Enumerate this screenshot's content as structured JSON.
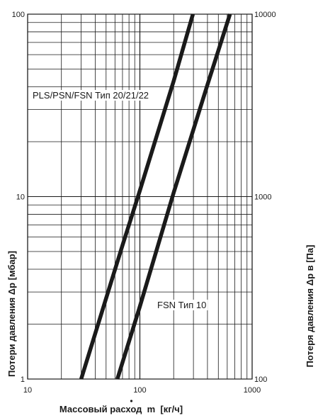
{
  "chart_data": {
    "type": "line",
    "xscale": "log",
    "yscale": "log",
    "xlim": [
      10,
      1000
    ],
    "ylim": [
      1,
      100
    ],
    "y2lim": [
      100,
      10000
    ],
    "grid": true,
    "xlabel": "Массовый расход  m  [кг/ч]",
    "ylabel": "Потери давления Δp [мбар]",
    "y2label": "Потеря давления Δp в [Па]",
    "x_ticks": [
      "10",
      "100",
      "1000"
    ],
    "y_ticks": [
      "1",
      "10",
      "100"
    ],
    "y2_ticks": [
      "100",
      "1000",
      "10000"
    ],
    "series": [
      {
        "name": "PLS/PSN/FSN Тип 20/21/22",
        "x": [
          30,
          70,
          100,
          200,
          297
        ],
        "y": [
          1,
          5.4,
          10.8,
          43,
          100
        ]
      },
      {
        "name": "FSN Тип 10",
        "x": [
          63,
          100,
          200,
          400,
          635
        ],
        "y": [
          1,
          2.5,
          10.5,
          41,
          100
        ]
      }
    ],
    "annotations": [
      {
        "text": "PLS/PSN/FSN Тип 20/21/22",
        "series": 0
      },
      {
        "text": "FSN Тип 10",
        "series": 1
      }
    ]
  }
}
